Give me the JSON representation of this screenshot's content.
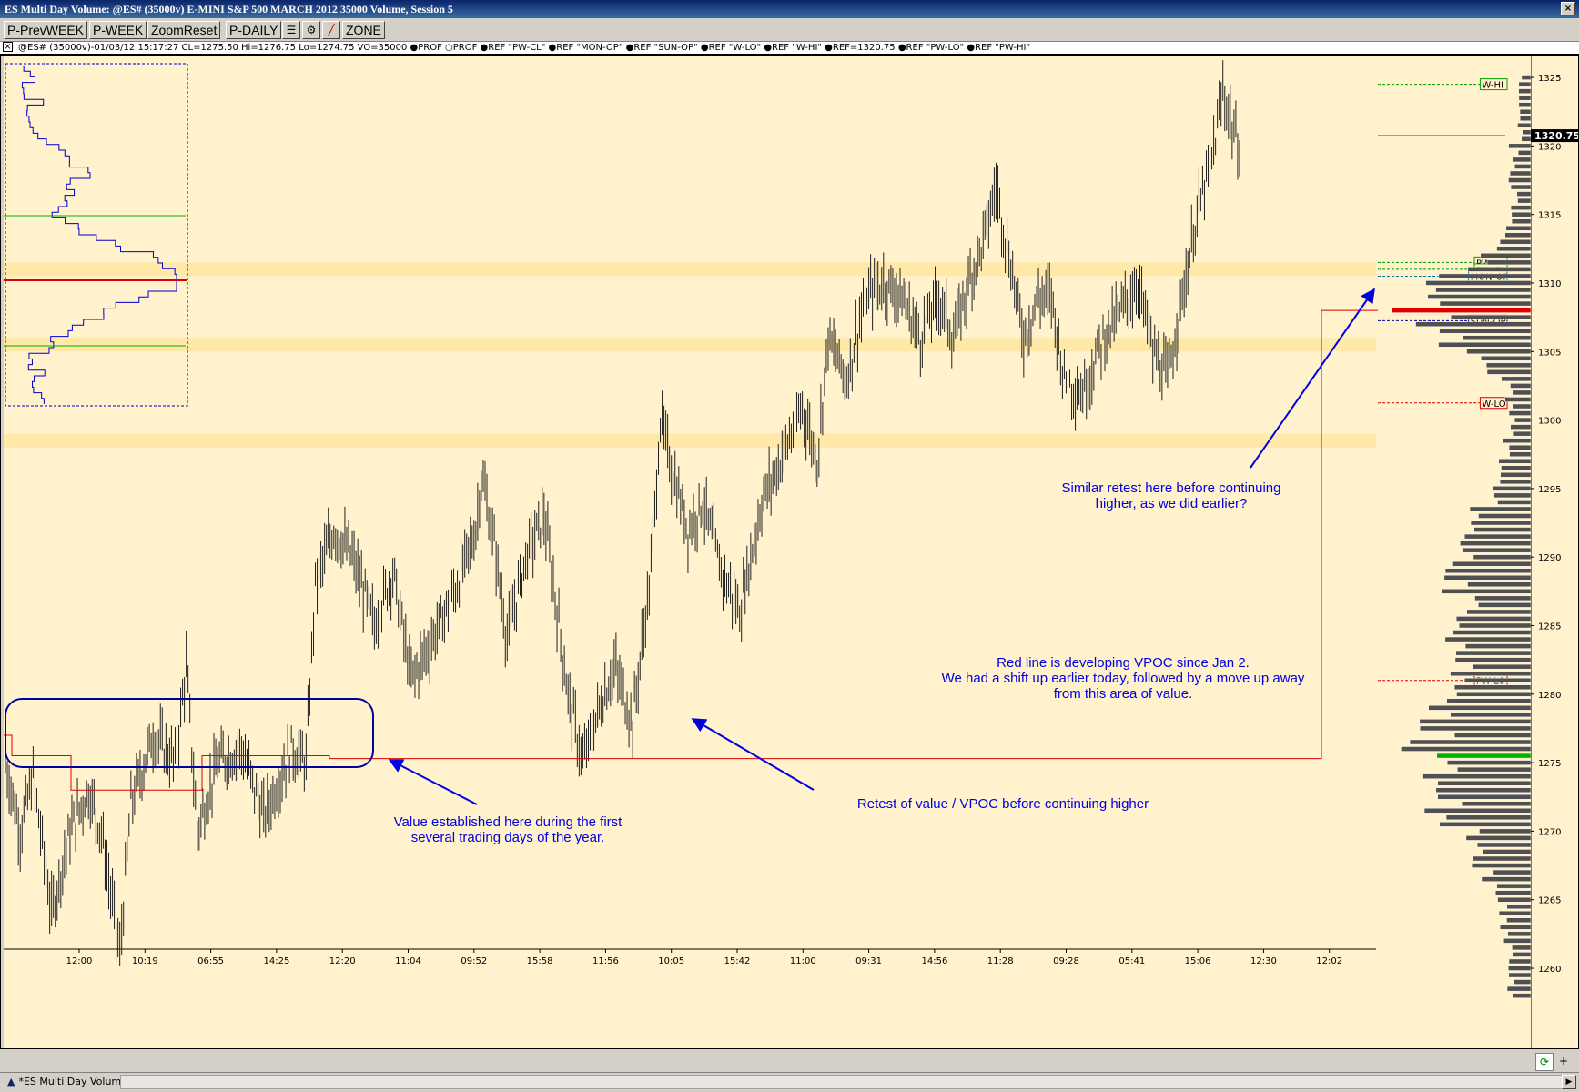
{
  "window": {
    "title": "ES Multi Day Volume: @ES# (35000v) E-MINI S&P 500 MARCH 2012 35000 Volume, Session 5"
  },
  "toolbar": {
    "buttons": [
      "P-PrevWEEK",
      "P-WEEK",
      "ZoomReset",
      "P-DAILY"
    ],
    "zone_label": "ZONE"
  },
  "status": {
    "text": "@ES# (35000v)-01/03/12 15:17:27 CL=1275.50 Hi=1276.75 Lo=1274.75 VO=35000  ●PROF ○PROF ●REF \"PW-CL\" ●REF \"MON-OP\" ●REF \"SUN-OP\" ●REF \"W-LO\" ●REF \"W-HI\" ●REF=1320.75 ●REF \"PW-LO\" ●REF \"PW-HI\""
  },
  "colors": {
    "background": "#fff2cc",
    "band": "#ffe8a8",
    "annotation": "#0000e0",
    "vpoc": "#e00000",
    "profile_blue": "#0000c8",
    "value_green": "#00b000",
    "volume_bar": "#505050"
  },
  "chart_data": {
    "type": "bar",
    "subtype": "ohlc-volume-bars-with-volume-profile",
    "title": "ES Multi Day Volume",
    "ylim": [
      1258,
      1326
    ],
    "yticks": [
      1260,
      1265,
      1270,
      1275,
      1280,
      1285,
      1290,
      1295,
      1300,
      1305,
      1310,
      1315,
      1320,
      1325
    ],
    "xticks": [
      "12:00",
      "10:19",
      "06:55",
      "14:25",
      "12:20",
      "11:04",
      "09:52",
      "15:58",
      "11:56",
      "10:05",
      "15:42",
      "11:00",
      "09:31",
      "14:56",
      "11:28",
      "09:28",
      "05:41",
      "15:06",
      "12:30",
      "12:02"
    ],
    "price_path": [
      [
        0,
        1275
      ],
      [
        8,
        1270
      ],
      [
        15,
        1274
      ],
      [
        25,
        1264
      ],
      [
        35,
        1270
      ],
      [
        45,
        1273
      ],
      [
        52,
        1270
      ],
      [
        62,
        1261
      ],
      [
        68,
        1272
      ],
      [
        80,
        1277
      ],
      [
        92,
        1275
      ],
      [
        98,
        1282
      ],
      [
        104,
        1270
      ],
      [
        115,
        1275
      ],
      [
        128,
        1276
      ],
      [
        140,
        1271
      ],
      [
        155,
        1276
      ],
      [
        163,
        1275
      ],
      [
        168,
        1288
      ],
      [
        178,
        1292
      ],
      [
        188,
        1290
      ],
      [
        200,
        1285
      ],
      [
        210,
        1289
      ],
      [
        220,
        1281
      ],
      [
        235,
        1285
      ],
      [
        245,
        1288
      ],
      [
        255,
        1292
      ],
      [
        258,
        1296
      ],
      [
        265,
        1291
      ],
      [
        272,
        1284
      ],
      [
        282,
        1290
      ],
      [
        292,
        1293
      ],
      [
        305,
        1280
      ],
      [
        313,
        1275
      ],
      [
        322,
        1279
      ],
      [
        330,
        1282
      ],
      [
        340,
        1278
      ],
      [
        350,
        1289
      ],
      [
        355,
        1300
      ],
      [
        362,
        1296
      ],
      [
        370,
        1292
      ],
      [
        378,
        1294
      ],
      [
        388,
        1289
      ],
      [
        398,
        1286
      ],
      [
        410,
        1294
      ],
      [
        420,
        1297
      ],
      [
        432,
        1301
      ],
      [
        440,
        1297
      ],
      [
        446,
        1306
      ],
      [
        456,
        1303
      ],
      [
        466,
        1309
      ],
      [
        476,
        1310
      ],
      [
        486,
        1309
      ],
      [
        496,
        1306
      ],
      [
        506,
        1309
      ],
      [
        514,
        1306
      ],
      [
        522,
        1310
      ],
      [
        530,
        1313
      ],
      [
        537,
        1317
      ],
      [
        544,
        1312
      ],
      [
        552,
        1306
      ],
      [
        560,
        1309
      ],
      [
        567,
        1309
      ],
      [
        574,
        1303
      ],
      [
        584,
        1302
      ],
      [
        595,
        1306
      ],
      [
        605,
        1308
      ],
      [
        614,
        1310
      ],
      [
        622,
        1305
      ],
      [
        630,
        1303
      ],
      [
        638,
        1309
      ],
      [
        646,
        1315
      ],
      [
        654,
        1319
      ],
      [
        660,
        1324
      ],
      [
        664,
        1322
      ],
      [
        668,
        1320
      ]
    ],
    "price_path_x_note": "x = bar index along the time axis",
    "annotation_lines": [
      {
        "label": "W-HI",
        "value": 1324.5,
        "color": "#00a000"
      },
      {
        "label": "1320.75",
        "value": 1320.75,
        "color": "#0000a0"
      },
      {
        "label": "PW-HI",
        "value": 1311.5,
        "color": "#00a000"
      },
      {
        "label": "PW-CL",
        "value": 1311,
        "color": "#00a000"
      },
      {
        "label": "MON-OP",
        "value": 1310.5,
        "color": "#0080a0"
      },
      {
        "label": "SUN-OP",
        "value": 1307.25,
        "color": "#0000a0"
      },
      {
        "label": "W-LO",
        "value": 1301.25,
        "color": "#e00000"
      },
      {
        "label": "PW-LO",
        "value": 1281,
        "color": "#e00000"
      }
    ],
    "vpoc_level": 1275.5,
    "vpoc_later_level": 1308,
    "value_bands": [
      [
        1310.5,
        1311.5
      ],
      [
        1305,
        1306
      ],
      [
        1298,
        1299
      ]
    ],
    "current_price": "1320.75",
    "annotations": [
      "Value established here during the first\nseveral trading days of the year.",
      "Retest of value / VPOC before continuing higher",
      "Red line is developing VPOC since Jan 2.\nWe had a shift up earlier today, followed by a move up away\nfrom this area of value.",
      "Similar retest here before continuing\nhigher, as we did earlier?"
    ]
  }
}
